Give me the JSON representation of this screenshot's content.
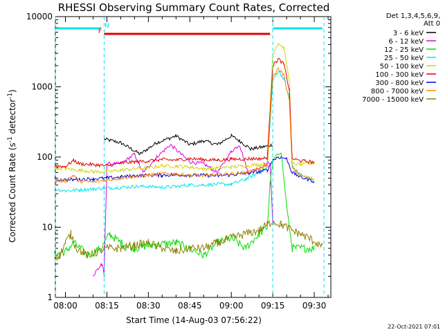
{
  "chart_data": {
    "type": "line",
    "title": "RHESSI Observing Summary Count Rates, Corrected",
    "xlabel": "Start Time (14-Aug-03 07:56:22)",
    "ylabel": "Corrected Count Rate (s⁻¹ detector⁻¹)",
    "ylabel_parts": {
      "main": "Corrected Count Rate (s",
      "sup1": "-1",
      "mid": " detector",
      "sup2": "-1",
      "end": ")"
    },
    "yscale": "log",
    "ylim": [
      1,
      10000
    ],
    "xlim": [
      "07:56:22",
      "09:36:00"
    ],
    "x_ticks": [
      "08:00",
      "08:15",
      "08:30",
      "08:45",
      "09:00",
      "09:15",
      "09:30"
    ],
    "y_ticks": [
      "1",
      "10",
      "100",
      "1000",
      "10000"
    ],
    "grid": false,
    "legend_position": "right",
    "legend_header": [
      "Det 1,3,4,5,6,9,",
      "Att 0"
    ],
    "footer_timestamp": "22-Oct-2021 07:01",
    "flags": [
      {
        "label": "",
        "color": "#00e5ee",
        "type": "night",
        "x": [
          "07:56:22",
          "08:13:00"
        ]
      },
      {
        "label": "F",
        "color": "#e00000",
        "type": "flare",
        "x": [
          "08:14:00",
          "09:14:00"
        ]
      },
      {
        "label": "N",
        "color": "#00e5ee",
        "type": "saa",
        "x": [
          "08:14:00",
          "08:14:00"
        ]
      },
      {
        "label": "",
        "color": "#00e5ee",
        "type": "night",
        "x": [
          "09:15:00",
          "09:33:00"
        ]
      }
    ],
    "vlines": [
      "07:56:22",
      "08:14:00",
      "09:15:00",
      "09:33:30"
    ],
    "series": [
      {
        "name": "3 - 6 keV",
        "color": "#000000",
        "points": [
          [
            "08:14",
            180
          ],
          [
            "08:20",
            160
          ],
          [
            "08:27",
            110
          ],
          [
            "08:33",
            160
          ],
          [
            "08:40",
            200
          ],
          [
            "08:45",
            150
          ],
          [
            "08:50",
            170
          ],
          [
            "08:55",
            150
          ],
          [
            "09:00",
            200
          ],
          [
            "09:03",
            170
          ],
          [
            "09:07",
            130
          ],
          [
            "09:12",
            140
          ],
          [
            "09:15",
            150
          ]
        ]
      },
      {
        "name": "6 - 12 keV",
        "color": "#e000e0",
        "points": [
          [
            "08:10",
            2
          ],
          [
            "08:13",
            3
          ],
          [
            "08:14",
            2
          ],
          [
            "08:15",
            80
          ],
          [
            "08:20",
            80
          ],
          [
            "08:25",
            110
          ],
          [
            "08:28",
            60
          ],
          [
            "08:33",
            100
          ],
          [
            "08:38",
            150
          ],
          [
            "08:45",
            85
          ],
          [
            "08:50",
            80
          ],
          [
            "08:55",
            60
          ],
          [
            "09:00",
            120
          ],
          [
            "09:03",
            150
          ],
          [
            "09:06",
            60
          ],
          [
            "09:10",
            70
          ],
          [
            "09:14",
            85
          ],
          [
            "09:15",
            11
          ]
        ]
      },
      {
        "name": "12 - 25 keV",
        "color": "#00e000",
        "points": [
          [
            "07:56",
            4
          ],
          [
            "08:00",
            4.5
          ],
          [
            "08:03",
            6
          ],
          [
            "08:08",
            4
          ],
          [
            "08:13",
            5
          ],
          [
            "08:16",
            8
          ],
          [
            "08:20",
            6
          ],
          [
            "08:25",
            5
          ],
          [
            "08:30",
            5.5
          ],
          [
            "08:40",
            6
          ],
          [
            "08:50",
            4
          ],
          [
            "08:55",
            6
          ],
          [
            "09:00",
            7
          ],
          [
            "09:05",
            5
          ],
          [
            "09:10",
            8
          ],
          [
            "09:13",
            10
          ],
          [
            "09:14",
            40
          ],
          [
            "09:15",
            90
          ],
          [
            "09:18",
            120
          ],
          [
            "09:20",
            20
          ],
          [
            "09:22",
            5
          ],
          [
            "09:30",
            5
          ]
        ]
      },
      {
        "name": "25 - 50 keV",
        "color": "#00e5ee",
        "points": [
          [
            "07:56",
            35
          ],
          [
            "08:00",
            33
          ],
          [
            "08:05",
            34
          ],
          [
            "08:10",
            35
          ],
          [
            "08:15",
            36
          ],
          [
            "08:20",
            37
          ],
          [
            "08:25",
            38
          ],
          [
            "08:30",
            38
          ],
          [
            "08:35",
            37
          ],
          [
            "08:40",
            38
          ],
          [
            "08:45",
            40
          ],
          [
            "08:50",
            40
          ],
          [
            "08:55",
            41
          ],
          [
            "09:00",
            41
          ],
          [
            "09:05",
            48
          ],
          [
            "09:10",
            60
          ],
          [
            "09:13",
            70
          ],
          [
            "09:15",
            1200
          ],
          [
            "09:17",
            1700
          ],
          [
            "09:19",
            1300
          ],
          [
            "09:21",
            700
          ],
          [
            "09:22",
            75
          ],
          [
            "09:25",
            55
          ],
          [
            "09:30",
            45
          ]
        ]
      },
      {
        "name": "50 - 100 keV",
        "color": "#d4d400",
        "points": [
          [
            "07:56",
            70
          ],
          [
            "08:00",
            68
          ],
          [
            "08:05",
            65
          ],
          [
            "08:10",
            62
          ],
          [
            "08:15",
            62
          ],
          [
            "08:20",
            65
          ],
          [
            "08:25",
            68
          ],
          [
            "08:30",
            70
          ],
          [
            "08:35",
            75
          ],
          [
            "08:40",
            74
          ],
          [
            "08:45",
            72
          ],
          [
            "08:50",
            68
          ],
          [
            "08:55",
            70
          ],
          [
            "09:00",
            72
          ],
          [
            "09:05",
            75
          ],
          [
            "09:10",
            78
          ],
          [
            "09:13",
            80
          ],
          [
            "09:15",
            3000
          ],
          [
            "09:17",
            4200
          ],
          [
            "09:19",
            3600
          ],
          [
            "09:21",
            1200
          ],
          [
            "09:22",
            80
          ],
          [
            "09:25",
            78
          ],
          [
            "09:30",
            82
          ]
        ]
      },
      {
        "name": "100 - 300 keV",
        "color": "#e00000",
        "points": [
          [
            "07:56",
            75
          ],
          [
            "08:00",
            73
          ],
          [
            "08:03",
            90
          ],
          [
            "08:05",
            80
          ],
          [
            "08:10",
            78
          ],
          [
            "08:15",
            75
          ],
          [
            "08:20",
            82
          ],
          [
            "08:25",
            85
          ],
          [
            "08:30",
            88
          ],
          [
            "08:35",
            92
          ],
          [
            "08:40",
            90
          ],
          [
            "08:45",
            95
          ],
          [
            "08:50",
            92
          ],
          [
            "08:55",
            90
          ],
          [
            "09:00",
            93
          ],
          [
            "09:05",
            94
          ],
          [
            "09:10",
            95
          ],
          [
            "09:13",
            96
          ],
          [
            "09:15",
            2000
          ],
          [
            "09:17",
            2500
          ],
          [
            "09:19",
            2100
          ],
          [
            "09:21",
            900
          ],
          [
            "09:22",
            95
          ],
          [
            "09:25",
            88
          ],
          [
            "09:30",
            85
          ]
        ]
      },
      {
        "name": "300 - 800 keV",
        "color": "#0000e0",
        "points": [
          [
            "07:56",
            48
          ],
          [
            "08:00",
            47
          ],
          [
            "08:05",
            48
          ],
          [
            "08:10",
            49
          ],
          [
            "08:15",
            50
          ],
          [
            "08:20",
            52
          ],
          [
            "08:25",
            54
          ],
          [
            "08:30",
            55
          ],
          [
            "08:35",
            55
          ],
          [
            "08:40",
            56
          ],
          [
            "08:45",
            55
          ],
          [
            "08:50",
            55
          ],
          [
            "08:55",
            54
          ],
          [
            "09:00",
            56
          ],
          [
            "09:05",
            58
          ],
          [
            "09:10",
            62
          ],
          [
            "09:13",
            65
          ],
          [
            "09:15",
            90
          ],
          [
            "09:17",
            100
          ],
          [
            "09:20",
            95
          ],
          [
            "09:22",
            60
          ],
          [
            "09:25",
            52
          ],
          [
            "09:30",
            45
          ]
        ]
      },
      {
        "name": "800 - 7000 keV",
        "color": "#ff8c00",
        "points": [
          [
            "07:56",
            45
          ],
          [
            "08:00",
            46
          ],
          [
            "08:03",
            55
          ],
          [
            "08:05",
            45
          ],
          [
            "08:10",
            44
          ],
          [
            "08:15",
            47
          ],
          [
            "08:20",
            50
          ],
          [
            "08:25",
            53
          ],
          [
            "08:30",
            55
          ],
          [
            "08:35",
            58
          ],
          [
            "08:40",
            57
          ],
          [
            "08:45",
            55
          ],
          [
            "08:50",
            54
          ],
          [
            "08:55",
            56
          ],
          [
            "09:00",
            58
          ],
          [
            "09:05",
            60
          ],
          [
            "09:10",
            68
          ],
          [
            "09:13",
            75
          ],
          [
            "09:15",
            1400
          ],
          [
            "09:17",
            1800
          ],
          [
            "09:19",
            1500
          ],
          [
            "09:21",
            600
          ],
          [
            "09:22",
            70
          ],
          [
            "09:25",
            55
          ],
          [
            "09:30",
            48
          ]
        ]
      },
      {
        "name": "7000 - 15000 keV",
        "color": "#8b8000",
        "points": [
          [
            "07:56",
            3.8
          ],
          [
            "07:58",
            4
          ],
          [
            "08:00",
            6
          ],
          [
            "08:02",
            8
          ],
          [
            "08:04",
            5
          ],
          [
            "08:08",
            4
          ],
          [
            "08:12",
            4.5
          ],
          [
            "08:15",
            5
          ],
          [
            "08:20",
            5
          ],
          [
            "08:25",
            5.5
          ],
          [
            "08:30",
            6
          ],
          [
            "08:35",
            5
          ],
          [
            "08:40",
            4.5
          ],
          [
            "08:45",
            5
          ],
          [
            "08:50",
            5
          ],
          [
            "08:55",
            6
          ],
          [
            "09:00",
            7
          ],
          [
            "09:05",
            8
          ],
          [
            "09:10",
            9
          ],
          [
            "09:13",
            11
          ],
          [
            "09:15",
            12
          ],
          [
            "09:18",
            11
          ],
          [
            "09:22",
            9
          ],
          [
            "09:25",
            8
          ],
          [
            "09:28",
            7
          ],
          [
            "09:31",
            6
          ],
          [
            "09:33",
            5
          ]
        ]
      }
    ]
  }
}
